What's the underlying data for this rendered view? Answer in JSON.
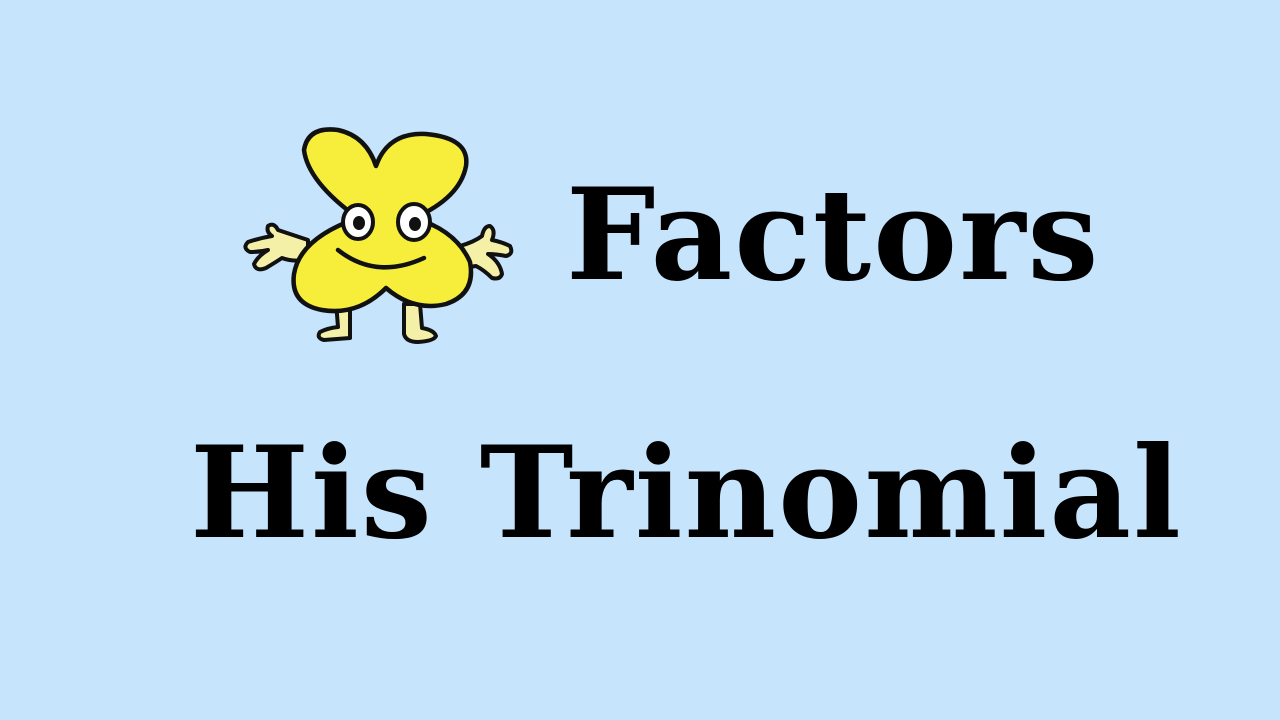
{
  "title": {
    "line1": "Factors",
    "line2": "His Trinomial"
  },
  "mascot": {
    "icon": "four-leaf-mascot-icon",
    "fill_color": "#f7ee3c",
    "hand_color": "#f5f0a8",
    "outline_color": "#111111"
  },
  "colors": {
    "background": "#c6e4fc",
    "text": "#000000"
  }
}
